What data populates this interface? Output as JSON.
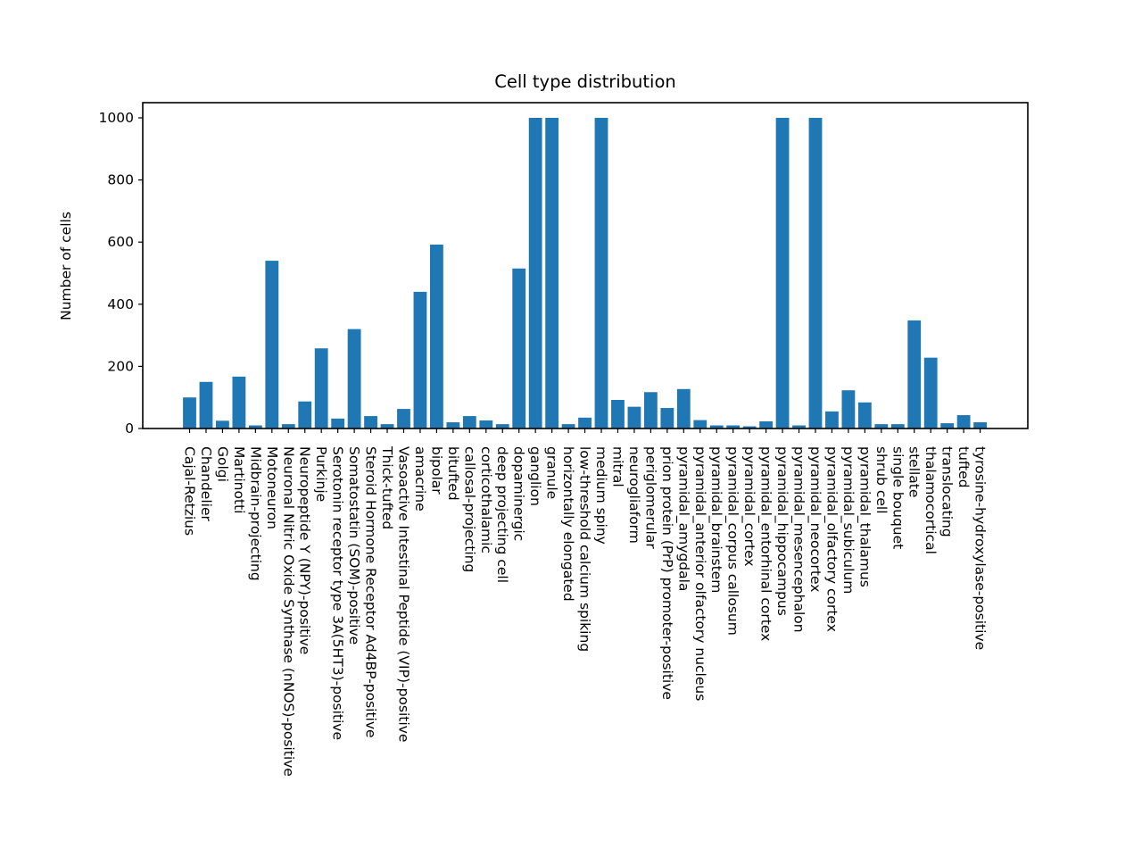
{
  "chart_data": {
    "type": "bar",
    "title": "Cell type distribution",
    "xlabel": "",
    "ylabel": "Number of cells",
    "ylim": [
      0,
      1050
    ],
    "yticks": [
      0,
      200,
      400,
      600,
      800,
      1000
    ],
    "grid": false,
    "bar_color": "#1f77b4",
    "categories": [
      "Cajal-Retzius",
      "Chandelier",
      "Golgi",
      "Martinotti",
      "Midbrain-projecting",
      "Motoneuron",
      "Neuronal Nitric Oxide Synthase (nNOS)-positive",
      "Neuropeptide Y (NPY)-positive",
      "Purkinje",
      "Serotonin receptor type 3A(5HT3)-positive",
      "Somatostatin (SOM)-positive",
      "Steroid Hormone Receptor Ad4BP-positive",
      "Thick-tufted",
      "Vasoactive Intestinal Peptide (VIP)-positive",
      "amacrine",
      "bipolar",
      "bitufted",
      "callosal-projecting",
      "corticothalamic",
      "deep projecting cell",
      "dopaminergic",
      "ganglion",
      "granule",
      "horizontally elongated",
      "low-threshold calcium spiking",
      "medium spiny",
      "mitral",
      "neurogliaform",
      "periglomerular",
      "prion protein (PrP) promoter-positive",
      "pyramidal_amygdala",
      "pyramidal_anterior olfactory nucleus",
      "pyramidal_brainstem",
      "pyramidal_corpus callosum",
      "pyramidal_cortex",
      "pyramidal_entorhinal cortex",
      "pyramidal_hippocampus",
      "pyramidal_mesencephalon",
      "pyramidal_neocortex",
      "pyramidal_olfactory cortex",
      "pyramidal_subiculum",
      "pyramidal_thalamus",
      "shrub cell",
      "single bouquet",
      "stellate",
      "thalamocortical",
      "translocating",
      "tufted",
      "tyrosine-hydroxylase-positive"
    ],
    "values": [
      100,
      150,
      25,
      167,
      10,
      540,
      14,
      87,
      258,
      32,
      320,
      40,
      14,
      63,
      440,
      592,
      20,
      40,
      26,
      14,
      515,
      1000,
      1000,
      14,
      35,
      1000,
      92,
      70,
      117,
      66,
      127,
      27,
      10,
      10,
      7,
      23,
      1000,
      10,
      1000,
      55,
      123,
      84,
      14,
      14,
      348,
      228,
      17,
      43,
      20
    ]
  }
}
